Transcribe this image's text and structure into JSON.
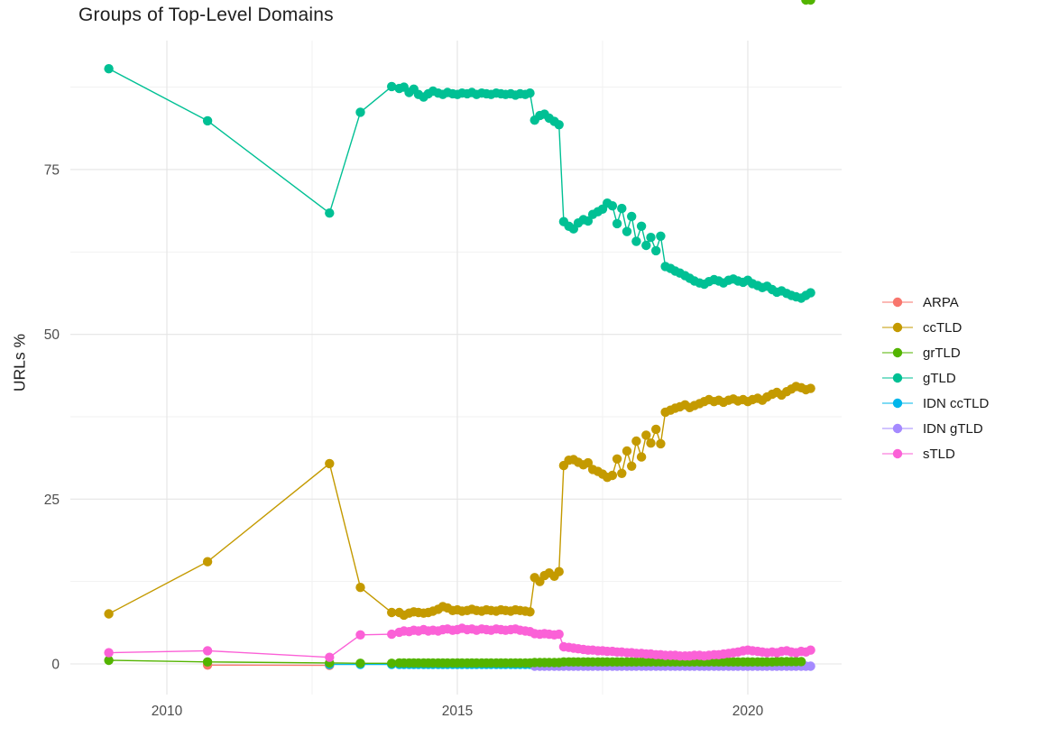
{
  "chart_data": {
    "type": "scatter-line",
    "title": "Groups of Top-Level Domains",
    "xlabel": "",
    "ylabel": "URLs %",
    "x_ticks": [
      {
        "value": 2010,
        "label": "2010"
      },
      {
        "value": 2015,
        "label": "2015"
      },
      {
        "value": 2020,
        "label": "2020"
      }
    ],
    "y_ticks": [
      {
        "value": 0,
        "label": "0"
      },
      {
        "value": 25,
        "label": "25"
      },
      {
        "value": 50,
        "label": "50"
      },
      {
        "value": 75,
        "label": "75"
      }
    ],
    "x_minor": [
      2012.5,
      2017.5
    ],
    "y_minor": [
      12.5,
      37.5,
      62.5,
      87.5
    ],
    "xlim": [
      2008.35,
      2021.6
    ],
    "ylim": [
      -4.5,
      94.5
    ],
    "grid": "on",
    "legend_position": "right",
    "x_groups": {
      "arpa": [
        2010.7,
        2012.8
      ],
      "idn_cc_early": [
        2012.8,
        2013.33,
        2013.87
      ],
      "early": [
        2009.0,
        2010.7,
        2012.8,
        2013.33,
        2013.87
      ],
      "plateau": [
        2014.0,
        2014.08,
        2014.17,
        2014.25,
        2014.33,
        2014.42,
        2014.5,
        2014.58,
        2014.67,
        2014.75,
        2014.83,
        2014.92,
        2015.0,
        2015.08,
        2015.17,
        2015.25,
        2015.33,
        2015.42,
        2015.5,
        2015.58,
        2015.67,
        2015.75,
        2015.83,
        2015.92,
        2016.0,
        2016.08,
        2016.17,
        2016.25
      ],
      "step": [
        2016.33,
        2016.42,
        2016.5,
        2016.58,
        2016.67,
        2016.75
      ],
      "dense": [
        2016.83,
        2016.92,
        2017.0,
        2017.08,
        2017.17,
        2017.25,
        2017.33,
        2017.42,
        2017.5,
        2017.58,
        2017.67,
        2017.75,
        2017.83,
        2017.92,
        2018.0,
        2018.08,
        2018.17,
        2018.25,
        2018.33,
        2018.42,
        2018.5,
        2018.58,
        2018.67,
        2018.75,
        2018.83,
        2018.92,
        2019.0,
        2019.08,
        2019.17,
        2019.25,
        2019.33,
        2019.42,
        2019.5,
        2019.58,
        2019.67,
        2019.75,
        2019.83,
        2019.92,
        2020.0,
        2020.08,
        2020.17,
        2020.25,
        2020.33,
        2020.42,
        2020.5,
        2020.58,
        2020.67,
        2020.75,
        2020.83,
        2020.92,
        2021.0,
        2021.08
      ]
    },
    "series": [
      {
        "name": "ARPA",
        "color": "#F8766D",
        "x_groups": [
          "arpa"
        ],
        "y": [
          0.1,
          0.05
        ]
      },
      {
        "name": "IDN ccTLD",
        "color": "#00B6EB",
        "x_groups": [
          "idn_cc_early",
          "plateau"
        ],
        "y": [
          0.05,
          0.05,
          0.05,
          0.05,
          0.05,
          0.05,
          0.05,
          0.05,
          0.05,
          0.05,
          0.05,
          0.05,
          0.05,
          0.05,
          0.05,
          0.05,
          0.05,
          0.05,
          0.05,
          0.05,
          0.05,
          0.05,
          0.05,
          0.05,
          0.05,
          0.05,
          0.05,
          0.05,
          0.05,
          0.05,
          0.05
        ]
      },
      {
        "name": "IDN gTLD",
        "color": "#A58AFF",
        "x_groups": [
          "step",
          "dense"
        ],
        "y": [
          0,
          0,
          0,
          0,
          0,
          0,
          0,
          0,
          0,
          0,
          0,
          0,
          0,
          0,
          0,
          0,
          0,
          0,
          0,
          0,
          0,
          0,
          0,
          0,
          0,
          0,
          0,
          0,
          0,
          0,
          0,
          0,
          0,
          0,
          0,
          0,
          0,
          0,
          0,
          0,
          0,
          0,
          0,
          0,
          0,
          0,
          0,
          0,
          0,
          0,
          0,
          0,
          0,
          0,
          0,
          0,
          0,
          0
        ]
      },
      {
        "name": "grTLD",
        "color": "#53B400",
        "x_groups": [
          "early",
          "plateau",
          "step",
          "dense"
        ],
        "y": [
          0.55,
          0.3,
          0.15,
          0.1,
          0.1,
          0.15,
          0.15,
          0.15,
          0.15,
          0.15,
          0.15,
          0.15,
          0.15,
          0.15,
          0.15,
          0.15,
          0.15,
          0.15,
          0.15,
          0.15,
          0.15,
          0.15,
          0.15,
          0.15,
          0.15,
          0.15,
          0.15,
          0.15,
          0.15,
          0.15,
          0.15,
          0.15,
          0.15,
          0.2,
          0.2,
          0.2,
          0.2,
          0.2,
          0.2,
          0.3,
          0.3,
          0.3,
          0.3,
          0.3,
          0.3,
          0.3,
          0.3,
          0.3,
          0.3,
          0.3,
          0.3,
          0.3,
          0.3,
          0.3,
          0.3,
          0.3,
          0.3,
          0.3,
          0.3,
          0.3,
          0.3,
          0.3,
          0.3,
          0.3,
          0.3,
          0.3,
          0.3,
          0.3,
          0.3,
          0.3,
          0.3,
          0.3,
          0.3,
          0.3,
          0.3,
          0.3,
          0.3,
          0.3,
          0.3,
          0.3,
          0.3,
          0.3,
          0.3,
          0.35,
          0.35,
          0.35,
          0.35,
          0.35,
          0.35
        ]
      },
      {
        "name": "sTLD",
        "color": "#FB61D7",
        "x_groups": [
          "early",
          "plateau",
          "step",
          "dense"
        ],
        "y": [
          1.7,
          2.0,
          1.0,
          4.4,
          4.5,
          4.8,
          5.0,
          4.9,
          5.1,
          5.0,
          5.2,
          5.0,
          5.1,
          5.0,
          5.2,
          5.3,
          5.1,
          5.2,
          5.4,
          5.2,
          5.3,
          5.1,
          5.3,
          5.2,
          5.1,
          5.3,
          5.2,
          5.1,
          5.2,
          5.3,
          5.1,
          5.0,
          4.9,
          4.6,
          4.5,
          4.6,
          4.5,
          4.4,
          4.5,
          2.6,
          2.5,
          2.4,
          2.3,
          2.2,
          2.1,
          2.1,
          2.0,
          2.0,
          1.9,
          1.9,
          1.8,
          1.8,
          1.7,
          1.7,
          1.6,
          1.6,
          1.5,
          1.5,
          1.4,
          1.4,
          1.3,
          1.3,
          1.3,
          1.2,
          1.2,
          1.2,
          1.3,
          1.3,
          1.2,
          1.3,
          1.4,
          1.4,
          1.5,
          1.6,
          1.7,
          1.8,
          2.0,
          2.1,
          2.0,
          1.9,
          1.8,
          1.7,
          1.8,
          1.7,
          1.9,
          2.0,
          1.8,
          1.7,
          1.9,
          1.8,
          2.1
        ]
      },
      {
        "name": "ccTLD",
        "color": "#C49A00",
        "x_groups": [
          "early",
          "plateau",
          "step",
          "dense"
        ],
        "y": [
          7.6,
          15.5,
          30.4,
          11.6,
          7.8,
          7.8,
          7.4,
          7.7,
          7.9,
          7.8,
          7.7,
          7.8,
          8.0,
          8.3,
          8.7,
          8.5,
          8.1,
          8.2,
          8.0,
          8.1,
          8.3,
          8.1,
          8.0,
          8.2,
          8.1,
          8.0,
          8.2,
          8.1,
          8.0,
          8.2,
          8.1,
          8.0,
          7.9,
          13.1,
          12.5,
          13.4,
          13.8,
          13.3,
          14.0,
          30.1,
          30.9,
          31.0,
          30.6,
          30.2,
          30.5,
          29.5,
          29.2,
          28.8,
          28.3,
          28.6,
          31.1,
          28.9,
          32.3,
          30.0,
          33.8,
          31.4,
          34.7,
          33.5,
          35.6,
          33.4,
          38.2,
          38.5,
          38.8,
          39.0,
          39.3,
          38.9,
          39.2,
          39.5,
          39.8,
          40.1,
          39.8,
          40.0,
          39.7,
          40.0,
          40.2,
          39.9,
          40.1,
          39.8,
          40.1,
          40.3,
          40.0,
          40.5,
          40.9,
          41.2,
          40.8,
          41.3,
          41.7,
          42.1,
          41.9,
          41.6,
          41.8
        ]
      },
      {
        "name": "gTLD",
        "color": "#00C094",
        "x_groups": [
          "early",
          "plateau",
          "step",
          "dense"
        ],
        "y": [
          90.3,
          82.4,
          68.4,
          83.7,
          87.6,
          87.3,
          87.5,
          86.7,
          87.2,
          86.4,
          86.0,
          86.5,
          86.9,
          86.6,
          86.4,
          86.7,
          86.5,
          86.4,
          86.6,
          86.5,
          86.7,
          86.4,
          86.6,
          86.5,
          86.4,
          86.6,
          86.5,
          86.4,
          86.5,
          86.3,
          86.5,
          86.4,
          86.6,
          82.5,
          83.2,
          83.4,
          82.8,
          82.3,
          81.8,
          67.1,
          66.4,
          66.0,
          66.9,
          67.4,
          67.2,
          68.2,
          68.6,
          69.0,
          69.9,
          69.5,
          66.8,
          69.1,
          65.6,
          67.9,
          64.1,
          66.4,
          63.5,
          64.7,
          62.7,
          64.9,
          60.3,
          60.0,
          59.6,
          59.3,
          58.9,
          58.5,
          58.1,
          57.8,
          57.6,
          58.0,
          58.3,
          58.1,
          57.8,
          58.2,
          58.4,
          58.1,
          57.9,
          58.2,
          57.7,
          57.4,
          57.1,
          57.3,
          56.8,
          56.4,
          56.6,
          56.2,
          55.9,
          55.7,
          55.5,
          55.9,
          56.3
        ]
      }
    ],
    "legend_order": [
      "ARPA",
      "ccTLD",
      "grTLD",
      "gTLD",
      "IDN ccTLD",
      "IDN gTLD",
      "sTLD"
    ],
    "colors": {
      "ARPA": "#F8766D",
      "ccTLD": "#C49A00",
      "grTLD": "#53B400",
      "gTLD": "#00C094",
      "IDN ccTLD": "#00B6EB",
      "IDN gTLD": "#A58AFF",
      "sTLD": "#FB61D7",
      "grid_major": "#E4E4E4",
      "grid_minor": "#F1F1F1",
      "tick_text": "#4d4d4d",
      "text": "#1f1f1f"
    }
  }
}
